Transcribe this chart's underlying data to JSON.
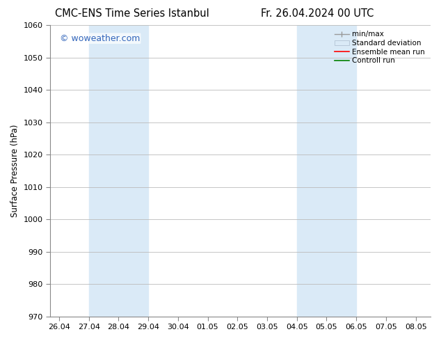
{
  "title_left": "CMC-ENS Time Series Istanbul",
  "title_right": "Fr. 26.04.2024 00 UTC",
  "ylabel": "Surface Pressure (hPa)",
  "ylim": [
    970,
    1060
  ],
  "yticks": [
    970,
    980,
    990,
    1000,
    1010,
    1020,
    1030,
    1040,
    1050,
    1060
  ],
  "xtick_labels": [
    "26.04",
    "27.04",
    "28.04",
    "29.04",
    "30.04",
    "01.05",
    "02.05",
    "03.05",
    "04.05",
    "05.05",
    "06.05",
    "07.05",
    "08.05"
  ],
  "watermark": "© woweather.com",
  "watermark_color": "#3366bb",
  "bg_color": "#ffffff",
  "shade_color": "#daeaf7",
  "grid_color": "#bbbbbb",
  "title_fontsize": 10.5,
  "ylabel_fontsize": 8.5,
  "tick_fontsize": 8,
  "watermark_fontsize": 9,
  "legend_fontsize": 7.5
}
